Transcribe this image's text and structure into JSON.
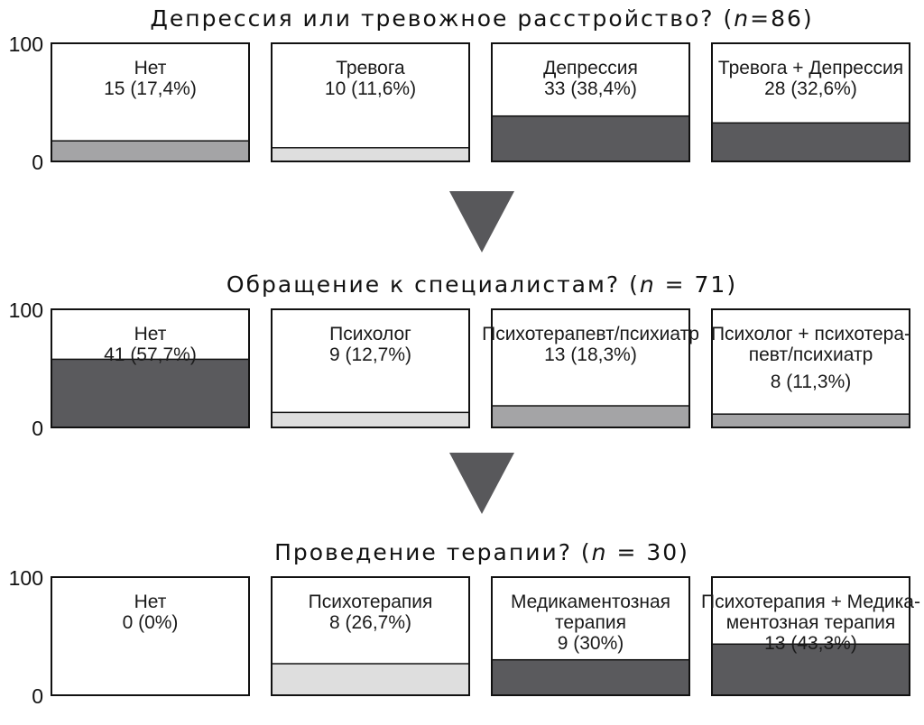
{
  "colors": {
    "mid_gray": "#a4a4a6",
    "light_gray": "#dedede",
    "dark_gray": "#5a5a5d",
    "arrow": "#58585b",
    "frame": "#111111"
  },
  "chart_data": [
    {
      "type": "bar",
      "title_parts": [
        "Депрессия или тревожное расстройство? (",
        "n",
        "=86)"
      ],
      "ylim": [
        0,
        100
      ],
      "yticks": [
        "100",
        "0"
      ],
      "categories": [
        {
          "label": [
            "Нет"
          ],
          "count_text": "15 (17,4%)",
          "percent": 17.4,
          "color": "mid_gray"
        },
        {
          "label": [
            "Тревога"
          ],
          "count_text": "10 (11,6%)",
          "percent": 11.6,
          "color": "light_gray"
        },
        {
          "label": [
            "Депрессия"
          ],
          "count_text": "33 (38,4%)",
          "percent": 38.4,
          "color": "dark_gray"
        },
        {
          "label": [
            "Тревога + Депрессия"
          ],
          "count_text": "28 (32,6%)",
          "percent": 32.6,
          "color": "dark_gray"
        }
      ]
    },
    {
      "type": "bar",
      "title_parts": [
        "Обращение к специалистам? (",
        "n",
        " = 71)"
      ],
      "ylim": [
        0,
        100
      ],
      "yticks": [
        "100",
        "0"
      ],
      "categories": [
        {
          "label": [
            "Нет"
          ],
          "count_text": "41 (57,7%)",
          "percent": 57.7,
          "color": "dark_gray"
        },
        {
          "label": [
            "Психолог"
          ],
          "count_text": "9 (12,7%)",
          "percent": 12.7,
          "color": "light_gray"
        },
        {
          "label": [
            "Психотерапевт/психиатр"
          ],
          "count_text": "13 (18,3%)",
          "percent": 18.3,
          "color": "mid_gray"
        },
        {
          "label": [
            "Психолог + психотера-",
            "певт/психиатр"
          ],
          "count_text": "8 (11,3%)",
          "percent": 11.3,
          "color": "mid_gray"
        }
      ]
    },
    {
      "type": "bar",
      "title_parts": [
        "Проведение терапии? (",
        "n",
        " = 30)"
      ],
      "ylim": [
        0,
        100
      ],
      "yticks": [
        "100",
        "0"
      ],
      "categories": [
        {
          "label": [
            "Нет"
          ],
          "count_text": "0 (0%)",
          "percent": 0,
          "color": "light_gray"
        },
        {
          "label": [
            "Психотерапия"
          ],
          "count_text": "8 (26,7%)",
          "percent": 26.7,
          "color": "light_gray"
        },
        {
          "label": [
            "Медикаментозная",
            "терапия"
          ],
          "count_text": "9 (30%)",
          "percent": 30,
          "color": "dark_gray"
        },
        {
          "label": [
            "Психотерапия + Медика-",
            "ментозная терапия"
          ],
          "count_text": "13 (43,3%)",
          "percent": 43.3,
          "color": "dark_gray"
        }
      ]
    }
  ]
}
